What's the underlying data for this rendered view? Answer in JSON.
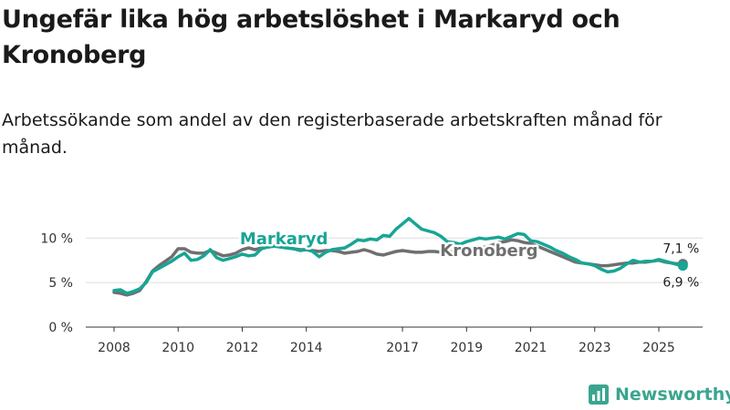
{
  "title": "Ungefär lika hög arbetslöshet i Markaryd och Kronoberg",
  "subtitle": "Arbetssökande som andel av den registerbaserade arbetskraften månad för månad.",
  "brand": {
    "name": "Newsworthy",
    "color": "#3aa58f",
    "icon": "bar-chart-icon"
  },
  "chart_data": {
    "type": "line",
    "ylim": [
      0,
      13
    ],
    "xlim": [
      2007.6,
      2026.3
    ],
    "y_ticks": [
      {
        "v": 0,
        "label": "0 %"
      },
      {
        "v": 5,
        "label": "5 %"
      },
      {
        "v": 10,
        "label": "10 %"
      }
    ],
    "x_ticks": [
      {
        "v": 2008,
        "label": "2008"
      },
      {
        "v": 2010,
        "label": "2010"
      },
      {
        "v": 2012,
        "label": "2012"
      },
      {
        "v": 2014,
        "label": "2014"
      },
      {
        "v": 2017,
        "label": "2017"
      },
      {
        "v": 2019,
        "label": "2019"
      },
      {
        "v": 2021,
        "label": "2021"
      },
      {
        "v": 2023,
        "label": "2023"
      },
      {
        "v": 2025,
        "label": "2025"
      }
    ],
    "series": [
      {
        "name": "Markaryd",
        "color": "#17a595",
        "end_label": "6,9 %",
        "points": [
          [
            2008.0,
            4.1
          ],
          [
            2008.2,
            4.2
          ],
          [
            2008.4,
            3.8
          ],
          [
            2008.6,
            4.0
          ],
          [
            2008.8,
            4.3
          ],
          [
            2009.0,
            5.0
          ],
          [
            2009.2,
            6.2
          ],
          [
            2009.4,
            6.6
          ],
          [
            2009.6,
            7.0
          ],
          [
            2009.8,
            7.4
          ],
          [
            2010.0,
            7.9
          ],
          [
            2010.2,
            8.3
          ],
          [
            2010.4,
            7.5
          ],
          [
            2010.6,
            7.6
          ],
          [
            2010.8,
            8.0
          ],
          [
            2011.0,
            8.7
          ],
          [
            2011.2,
            7.8
          ],
          [
            2011.4,
            7.5
          ],
          [
            2011.6,
            7.7
          ],
          [
            2011.8,
            7.9
          ],
          [
            2012.0,
            8.2
          ],
          [
            2012.2,
            8.0
          ],
          [
            2012.4,
            8.1
          ],
          [
            2012.6,
            8.8
          ],
          [
            2012.8,
            9.0
          ],
          [
            2013.0,
            9.1
          ],
          [
            2013.2,
            9.0
          ],
          [
            2013.4,
            8.9
          ],
          [
            2013.6,
            8.8
          ],
          [
            2013.8,
            8.6
          ],
          [
            2014.0,
            8.7
          ],
          [
            2014.2,
            8.5
          ],
          [
            2014.4,
            7.9
          ],
          [
            2014.6,
            8.4
          ],
          [
            2014.8,
            8.7
          ],
          [
            2015.0,
            8.8
          ],
          [
            2015.2,
            8.9
          ],
          [
            2015.4,
            9.3
          ],
          [
            2015.6,
            9.8
          ],
          [
            2015.8,
            9.7
          ],
          [
            2016.0,
            9.9
          ],
          [
            2016.2,
            9.8
          ],
          [
            2016.4,
            10.3
          ],
          [
            2016.6,
            10.2
          ],
          [
            2016.8,
            11.0
          ],
          [
            2017.0,
            11.6
          ],
          [
            2017.2,
            12.2
          ],
          [
            2017.4,
            11.6
          ],
          [
            2017.6,
            11.0
          ],
          [
            2017.8,
            10.8
          ],
          [
            2018.0,
            10.6
          ],
          [
            2018.2,
            10.2
          ],
          [
            2018.4,
            9.6
          ],
          [
            2018.6,
            9.5
          ],
          [
            2018.8,
            9.3
          ],
          [
            2019.0,
            9.6
          ],
          [
            2019.2,
            9.8
          ],
          [
            2019.4,
            10.0
          ],
          [
            2019.6,
            9.9
          ],
          [
            2019.8,
            10.0
          ],
          [
            2020.0,
            10.1
          ],
          [
            2020.2,
            9.9
          ],
          [
            2020.4,
            10.2
          ],
          [
            2020.6,
            10.5
          ],
          [
            2020.8,
            10.4
          ],
          [
            2021.0,
            9.7
          ],
          [
            2021.2,
            9.6
          ],
          [
            2021.4,
            9.3
          ],
          [
            2021.6,
            9.0
          ],
          [
            2021.8,
            8.6
          ],
          [
            2022.0,
            8.3
          ],
          [
            2022.2,
            7.9
          ],
          [
            2022.4,
            7.6
          ],
          [
            2022.6,
            7.2
          ],
          [
            2022.8,
            7.1
          ],
          [
            2023.0,
            6.9
          ],
          [
            2023.2,
            6.5
          ],
          [
            2023.4,
            6.2
          ],
          [
            2023.6,
            6.3
          ],
          [
            2023.8,
            6.6
          ],
          [
            2024.0,
            7.1
          ],
          [
            2024.2,
            7.5
          ],
          [
            2024.4,
            7.3
          ],
          [
            2024.6,
            7.4
          ],
          [
            2024.8,
            7.4
          ],
          [
            2025.0,
            7.6
          ],
          [
            2025.2,
            7.4
          ],
          [
            2025.4,
            7.2
          ],
          [
            2025.6,
            7.0
          ],
          [
            2025.75,
            6.9
          ]
        ]
      },
      {
        "name": "Kronoberg",
        "color": "#6f6f6f",
        "end_label": "7,1 %",
        "points": [
          [
            2008.0,
            3.9
          ],
          [
            2008.2,
            3.8
          ],
          [
            2008.4,
            3.6
          ],
          [
            2008.6,
            3.8
          ],
          [
            2008.8,
            4.1
          ],
          [
            2009.0,
            5.1
          ],
          [
            2009.2,
            6.3
          ],
          [
            2009.4,
            6.9
          ],
          [
            2009.6,
            7.4
          ],
          [
            2009.8,
            7.9
          ],
          [
            2010.0,
            8.8
          ],
          [
            2010.2,
            8.8
          ],
          [
            2010.4,
            8.4
          ],
          [
            2010.6,
            8.3
          ],
          [
            2010.8,
            8.3
          ],
          [
            2011.0,
            8.6
          ],
          [
            2011.2,
            8.3
          ],
          [
            2011.4,
            8.0
          ],
          [
            2011.6,
            8.1
          ],
          [
            2011.8,
            8.3
          ],
          [
            2012.0,
            8.7
          ],
          [
            2012.2,
            8.9
          ],
          [
            2012.4,
            8.7
          ],
          [
            2012.6,
            8.9
          ],
          [
            2012.8,
            9.0
          ],
          [
            2013.0,
            9.1
          ],
          [
            2013.2,
            9.0
          ],
          [
            2013.4,
            8.9
          ],
          [
            2013.6,
            8.8
          ],
          [
            2013.8,
            8.7
          ],
          [
            2014.0,
            8.7
          ],
          [
            2014.2,
            8.6
          ],
          [
            2014.4,
            8.5
          ],
          [
            2014.6,
            8.6
          ],
          [
            2014.8,
            8.6
          ],
          [
            2015.0,
            8.5
          ],
          [
            2015.2,
            8.3
          ],
          [
            2015.4,
            8.4
          ],
          [
            2015.6,
            8.5
          ],
          [
            2015.8,
            8.7
          ],
          [
            2016.0,
            8.5
          ],
          [
            2016.2,
            8.2
          ],
          [
            2016.4,
            8.1
          ],
          [
            2016.6,
            8.3
          ],
          [
            2016.8,
            8.5
          ],
          [
            2017.0,
            8.6
          ],
          [
            2017.2,
            8.5
          ],
          [
            2017.4,
            8.4
          ],
          [
            2017.6,
            8.4
          ],
          [
            2017.8,
            8.5
          ],
          [
            2018.0,
            8.5
          ],
          [
            2018.2,
            8.4
          ],
          [
            2018.4,
            8.4
          ],
          [
            2018.6,
            8.5
          ],
          [
            2018.8,
            8.6
          ],
          [
            2019.0,
            8.7
          ],
          [
            2019.2,
            8.8
          ],
          [
            2019.4,
            8.9
          ],
          [
            2019.6,
            9.0
          ],
          [
            2019.8,
            9.2
          ],
          [
            2020.0,
            9.5
          ],
          [
            2020.2,
            9.6
          ],
          [
            2020.4,
            9.8
          ],
          [
            2020.6,
            9.7
          ],
          [
            2020.8,
            9.5
          ],
          [
            2021.0,
            9.4
          ],
          [
            2021.2,
            9.1
          ],
          [
            2021.4,
            8.8
          ],
          [
            2021.6,
            8.5
          ],
          [
            2021.8,
            8.2
          ],
          [
            2022.0,
            7.9
          ],
          [
            2022.2,
            7.6
          ],
          [
            2022.4,
            7.3
          ],
          [
            2022.6,
            7.2
          ],
          [
            2022.8,
            7.1
          ],
          [
            2023.0,
            7.0
          ],
          [
            2023.2,
            6.9
          ],
          [
            2023.4,
            6.9
          ],
          [
            2023.6,
            7.0
          ],
          [
            2023.8,
            7.1
          ],
          [
            2024.0,
            7.2
          ],
          [
            2024.2,
            7.2
          ],
          [
            2024.4,
            7.3
          ],
          [
            2024.6,
            7.3
          ],
          [
            2024.8,
            7.4
          ],
          [
            2025.0,
            7.5
          ],
          [
            2025.2,
            7.3
          ],
          [
            2025.4,
            7.2
          ],
          [
            2025.6,
            7.1
          ],
          [
            2025.75,
            7.1
          ]
        ]
      }
    ],
    "annotations": [
      {
        "series": "Markaryd",
        "text": "Markaryd",
        "at_x": 2013.3
      },
      {
        "series": "Kronoberg",
        "text": "Kronoberg",
        "at_x": 2019.7
      }
    ]
  }
}
